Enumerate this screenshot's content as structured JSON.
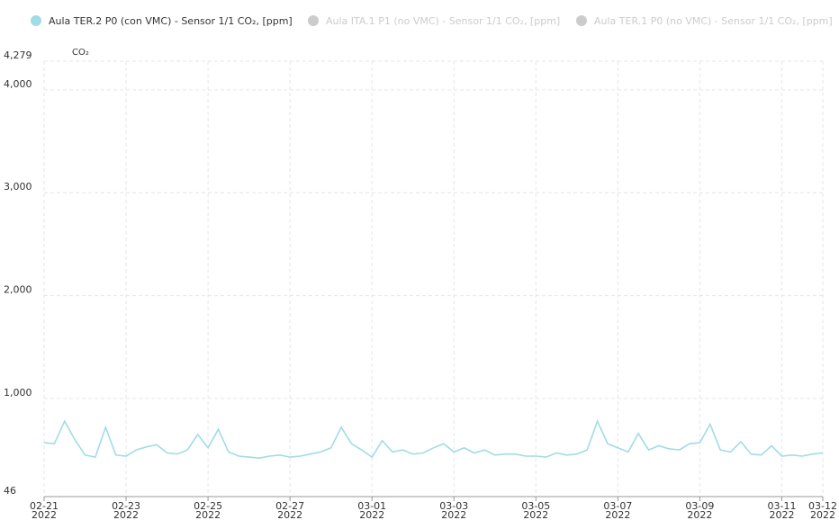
{
  "chart_data": {
    "type": "line",
    "y_label": "CO₂",
    "series": [
      {
        "name": "Aula TER.2 P0 (con VMC) - Sensor 1/1 CO₂, [ppm]",
        "color": "#a0dce6",
        "visible": true,
        "x": [
          "2022-02-21T00:00",
          "2022-02-21T06:00",
          "2022-02-21T12:00",
          "2022-02-21T18:00",
          "2022-02-22T00:00",
          "2022-02-22T06:00",
          "2022-02-22T12:00",
          "2022-02-22T18:00",
          "2022-02-23T00:00",
          "2022-02-23T06:00",
          "2022-02-23T12:00",
          "2022-02-23T18:00",
          "2022-02-24T00:00",
          "2022-02-24T06:00",
          "2022-02-24T12:00",
          "2022-02-24T18:00",
          "2022-02-25T00:00",
          "2022-02-25T06:00",
          "2022-02-25T12:00",
          "2022-02-25T18:00",
          "2022-02-26T00:00",
          "2022-02-26T06:00",
          "2022-02-26T12:00",
          "2022-02-26T18:00",
          "2022-02-27T00:00",
          "2022-02-27T06:00",
          "2022-02-27T12:00",
          "2022-02-27T18:00",
          "2022-02-28T00:00",
          "2022-02-28T06:00",
          "2022-02-28T12:00",
          "2022-02-28T18:00",
          "2022-03-01T00:00",
          "2022-03-01T06:00",
          "2022-03-01T12:00",
          "2022-03-01T18:00",
          "2022-03-02T00:00",
          "2022-03-02T06:00",
          "2022-03-02T12:00",
          "2022-03-02T18:00",
          "2022-03-03T00:00",
          "2022-03-03T06:00",
          "2022-03-03T12:00",
          "2022-03-03T18:00",
          "2022-03-04T00:00",
          "2022-03-04T06:00",
          "2022-03-04T12:00",
          "2022-03-04T18:00",
          "2022-03-05T00:00",
          "2022-03-05T06:00",
          "2022-03-05T12:00",
          "2022-03-05T18:00",
          "2022-03-06T00:00",
          "2022-03-06T06:00",
          "2022-03-06T12:00",
          "2022-03-06T18:00",
          "2022-03-07T00:00",
          "2022-03-07T06:00",
          "2022-03-07T12:00",
          "2022-03-07T18:00",
          "2022-03-08T00:00",
          "2022-03-08T06:00",
          "2022-03-08T12:00",
          "2022-03-08T18:00",
          "2022-03-09T00:00",
          "2022-03-09T06:00",
          "2022-03-09T12:00",
          "2022-03-09T18:00",
          "2022-03-10T00:00",
          "2022-03-10T06:00",
          "2022-03-10T12:00",
          "2022-03-10T18:00",
          "2022-03-11T00:00",
          "2022-03-11T06:00",
          "2022-03-11T12:00",
          "2022-03-11T18:00",
          "2022-03-12T00:00"
        ],
        "values": [
          570,
          560,
          780,
          600,
          450,
          430,
          720,
          450,
          440,
          500,
          530,
          550,
          470,
          460,
          500,
          650,
          520,
          700,
          480,
          440,
          430,
          420,
          440,
          450,
          430,
          440,
          460,
          480,
          520,
          720,
          560,
          500,
          430,
          590,
          480,
          500,
          460,
          470,
          520,
          560,
          480,
          520,
          470,
          500,
          450,
          460,
          460,
          440,
          440,
          430,
          470,
          450,
          460,
          500,
          780,
          560,
          520,
          480,
          660,
          500,
          540,
          510,
          500,
          560,
          570,
          750,
          500,
          480,
          580,
          460,
          450,
          540,
          440,
          450,
          440,
          460,
          470
        ]
      },
      {
        "name": "Aula ITA.1 P1 (no VMC) - Sensor 1/1 CO₂, [ppm]",
        "color": "#cccccc",
        "visible": false
      },
      {
        "name": "Aula TER.1 P0 (no VMC) - Sensor 1/1 CO₂, [ppm]",
        "color": "#cccccc",
        "visible": false
      }
    ],
    "xlim": [
      "2022-02-21T00:00",
      "2022-03-12T00:00"
    ],
    "xticks": [
      {
        "value": "2022-02-21T00:00",
        "label": "02-21\n2022"
      },
      {
        "value": "2022-02-23T00:00",
        "label": "02-23\n2022"
      },
      {
        "value": "2022-02-25T00:00",
        "label": "02-25\n2022"
      },
      {
        "value": "2022-02-27T00:00",
        "label": "02-27\n2022"
      },
      {
        "value": "2022-03-01T00:00",
        "label": "03-01\n2022"
      },
      {
        "value": "2022-03-03T00:00",
        "label": "03-03\n2022"
      },
      {
        "value": "2022-03-05T00:00",
        "label": "03-05\n2022"
      },
      {
        "value": "2022-03-07T00:00",
        "label": "03-07\n2022"
      },
      {
        "value": "2022-03-09T00:00",
        "label": "03-09\n2022"
      },
      {
        "value": "2022-03-11T00:00",
        "label": "03-11\n2022"
      },
      {
        "value": "2022-03-12T00:00",
        "label": "03-12\n2022"
      }
    ],
    "ylim": [
      46,
      4279
    ],
    "yticks": [
      46,
      {
        "value": 1000,
        "label": "1,000"
      },
      {
        "value": 2000,
        "label": "2,000"
      },
      {
        "value": 3000,
        "label": "3,000"
      },
      {
        "value": 4000,
        "label": "4,000"
      },
      {
        "value": 4279,
        "label": "4,279"
      }
    ],
    "grid": true
  }
}
